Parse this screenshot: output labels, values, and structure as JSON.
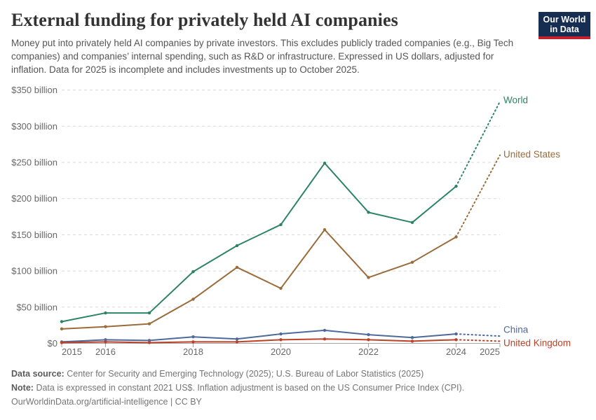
{
  "header": {
    "title": "External funding for privately held AI companies",
    "subtitle": "Money put into privately held AI companies by private investors. This excludes publicly traded companies (e.g., Big Tech companies) and companies’ internal spending, such as R&D or infrastructure. Expressed in US dollars, adjusted for inflation. Data for 2025 is incomplete and includes investments up to October 2025.",
    "logo": {
      "line1": "Our World",
      "line2": "in Data",
      "bg_color": "#152e52",
      "stripe_color": "#c5202c"
    }
  },
  "chart_data": {
    "type": "line",
    "title": "External funding for privately held AI companies",
    "unit": "US$ billion, constant 2021 prices",
    "x": [
      2015,
      2016,
      2017,
      2018,
      2019,
      2020,
      2021,
      2022,
      2023,
      2024,
      2025
    ],
    "x_ticks": [
      2015,
      2016,
      2018,
      2020,
      2022,
      2024,
      2025
    ],
    "y_ticks": [
      0,
      50,
      100,
      150,
      200,
      250,
      300,
      350
    ],
    "y_tick_labels": [
      "$0",
      "$50 billion",
      "$100 billion",
      "$150 billion",
      "$200 billion",
      "$250 billion",
      "$300 billion",
      "$350 billion"
    ],
    "ylim": [
      0,
      350
    ],
    "grid": "horizontal dashed",
    "grid_color": "#dadada",
    "axis_color": "#a3a3a3",
    "tick_label_color": "#676767",
    "legend_position": "end-of-line labels at right",
    "projection_note": "last segment (2024→2025) drawn dotted: 2025 data incomplete",
    "series": [
      {
        "name": "World",
        "color": "#2C8465",
        "values": [
          30,
          42,
          42,
          99,
          135,
          164,
          249,
          181,
          167,
          217,
          334
        ]
      },
      {
        "name": "United States",
        "color": "#996C39",
        "values": [
          20,
          23,
          27,
          61,
          105,
          76,
          157,
          91,
          112,
          147,
          260
        ]
      },
      {
        "name": "China",
        "color": "#4C6A9C",
        "values": [
          2,
          5,
          4,
          9,
          6,
          13,
          18,
          12,
          8,
          13,
          10
        ]
      },
      {
        "name": "United Kingdom",
        "color": "#BC4126",
        "values": [
          1,
          2,
          1,
          2,
          2,
          5,
          6,
          5,
          3,
          5,
          3
        ]
      }
    ]
  },
  "footer": {
    "source_label": "Data source:",
    "source_text": "Center for Security and Emerging Technology (2025); U.S. Bureau of Labor Statistics (2025)",
    "note_label": "Note:",
    "note_text": "Data is expressed in constant 2021 US$. Inflation adjustment is based on the US Consumer Price Index (CPI).",
    "attribution": "OurWorldinData.org/artificial-intelligence | CC BY"
  }
}
